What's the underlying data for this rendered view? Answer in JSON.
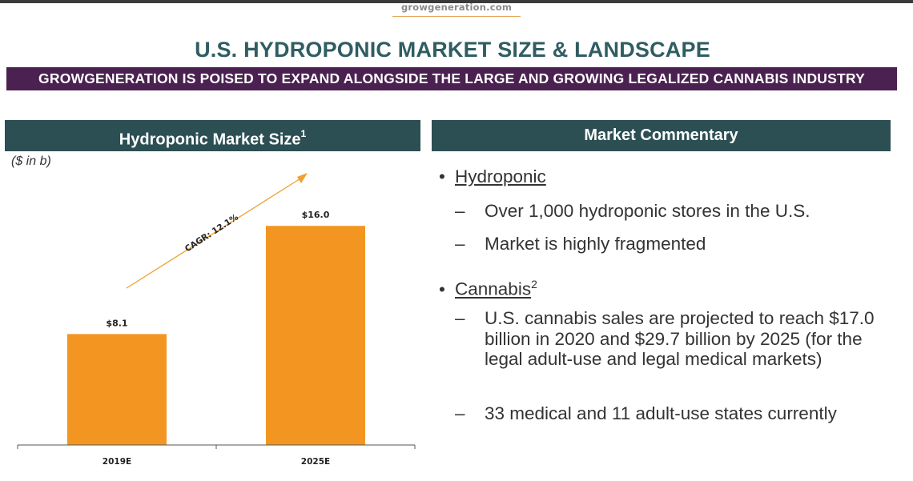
{
  "site_url": "growgeneration.com",
  "title": "U.S. HYDROPONIC MARKET SIZE & LANDSCAPE",
  "banner": "GROWGENERATION IS POISED TO EXPAND ALONGSIDE THE LARGE AND GROWING LEGALIZED CANNABIS INDUSTRY",
  "left_panel": {
    "header": "Hydroponic Market Size",
    "header_sup": "1",
    "unit_note": "($ in b)"
  },
  "right_panel": {
    "header": "Market Commentary",
    "sections": [
      {
        "bullet": "Hydroponic",
        "bullet_sup": "",
        "items": [
          "Over 1,000 hydroponic stores in the U.S.",
          "Market is highly fragmented"
        ]
      },
      {
        "bullet": "Cannabis",
        "bullet_sup": "2",
        "items": [
          "U.S. cannabis sales are projected to reach $17.0 billion in 2020 and $29.7 billion by 2025 (for the legal adult-use and legal medical markets)",
          "33 medical and 11 adult-use states currently"
        ]
      }
    ],
    "bullet_glyph": "•",
    "dash_glyph": "–"
  },
  "chart_data": {
    "type": "bar",
    "categories": [
      "2019E",
      "2025E"
    ],
    "values": [
      8.1,
      16.0
    ],
    "data_labels": [
      "$8.1",
      "$16.0"
    ],
    "annotation": "CAGR: 12.1%",
    "ylabel": "($ in b)",
    "ylim": [
      0,
      18
    ],
    "grid": false,
    "bar_color": "#f39621",
    "arrow_color": "#f0a030"
  },
  "colors": {
    "title": "#2f5d62",
    "banner_bg": "#4a2150",
    "panel_header_bg": "#2c4f53",
    "bar": "#f39621"
  }
}
